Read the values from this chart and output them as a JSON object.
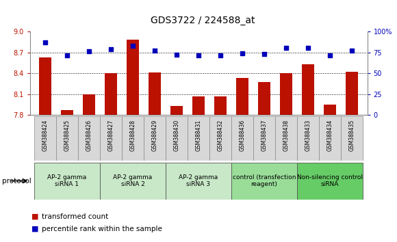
{
  "title": "GDS3722 / 224588_at",
  "samples": [
    "GSM388424",
    "GSM388425",
    "GSM388426",
    "GSM388427",
    "GSM388428",
    "GSM388429",
    "GSM388430",
    "GSM388431",
    "GSM388432",
    "GSM388436",
    "GSM388437",
    "GSM388438",
    "GSM388433",
    "GSM388434",
    "GSM388435"
  ],
  "transformed_count": [
    8.63,
    7.87,
    8.1,
    8.4,
    8.88,
    8.41,
    7.93,
    8.07,
    8.07,
    8.33,
    8.27,
    8.4,
    8.53,
    7.95,
    8.42
  ],
  "percentile_rank": [
    87,
    71,
    76,
    79,
    83,
    77,
    72,
    71,
    71,
    74,
    73,
    80,
    80,
    71,
    77
  ],
  "ylim_left": [
    7.8,
    9.0
  ],
  "ylim_right": [
    0,
    100
  ],
  "yticks_left": [
    7.8,
    8.1,
    8.4,
    8.7,
    9.0
  ],
  "yticks_right": [
    0,
    25,
    50,
    75,
    100
  ],
  "bar_color": "#bb1100",
  "dot_color": "#0000bb",
  "groups": [
    {
      "label": "AP-2 gamma\nsiRNA 1",
      "indices": [
        0,
        1,
        2
      ]
    },
    {
      "label": "AP-2 gamma\nsiRNA 2",
      "indices": [
        3,
        4,
        5
      ]
    },
    {
      "label": "AP-2 gamma\nsiRNA 3",
      "indices": [
        6,
        7,
        8
      ]
    },
    {
      "label": "control (transfection\nreagent)",
      "indices": [
        9,
        10,
        11
      ]
    },
    {
      "label": "Non-silencing control\nsiRNA",
      "indices": [
        12,
        13,
        14
      ]
    }
  ],
  "grp_colors": [
    "#c8e8c8",
    "#c8e8c8",
    "#c8e8c8",
    "#99dd99",
    "#66cc66"
  ],
  "protocol_label": "protocol",
  "legend_bar_label": "transformed count",
  "legend_dot_label": "percentile rank within the sample",
  "sample_box_color": "#d8d8d8",
  "sample_box_edge": "#888888"
}
